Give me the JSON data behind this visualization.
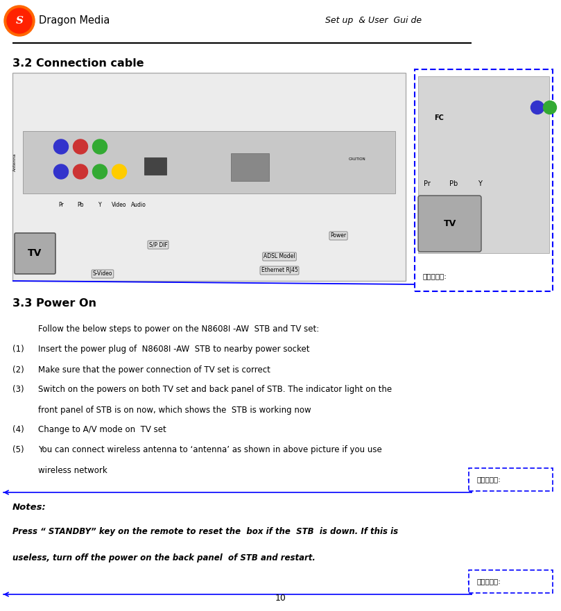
{
  "page_width": 8.09,
  "page_height": 8.81,
  "background_color": "#ffffff",
  "header_text_left": "Dragon Media",
  "header_text_right": "Set up  & User  Gui de",
  "section1_title": "3.2 Connection cable",
  "section2_title": "3.3 Power On",
  "section3_title": "Notes:",
  "notes_line1": "Press “ STANDBY” key on the remote to reset the  box if the  STB  is down. If this is",
  "notes_line2": "useless, turn off the power on the back panel  of STB and restart.",
  "body_lines": [
    [
      "",
      "Follow the below steps to power on the N8608I -AW  STB and TV set:"
    ],
    [
      "(1)",
      "Insert the power plug of  N8608I -AW  STB to nearby power socket"
    ],
    [
      "(2)",
      "Make sure that the power connection of TV set is correct"
    ],
    [
      "(3)",
      "Switch on the powers on both TV set and back panel of STB. The indicator light on the"
    ],
    [
      "   ",
      "front panel of STB is on now, which shows the  STB is working now"
    ],
    [
      "(4)",
      "Change to A/V mode on  TV set"
    ],
    [
      "(5)",
      "You can connect wireless antenna to ‘antenna’ as shown in above picture if you use"
    ],
    [
      "   ",
      "wireless network"
    ]
  ],
  "page_number": "10",
  "deleted_label": "删除的内容:",
  "blue_color": "#0000ff",
  "logo_outer_color": "#FF6600",
  "logo_inner_color": "#FF4400"
}
